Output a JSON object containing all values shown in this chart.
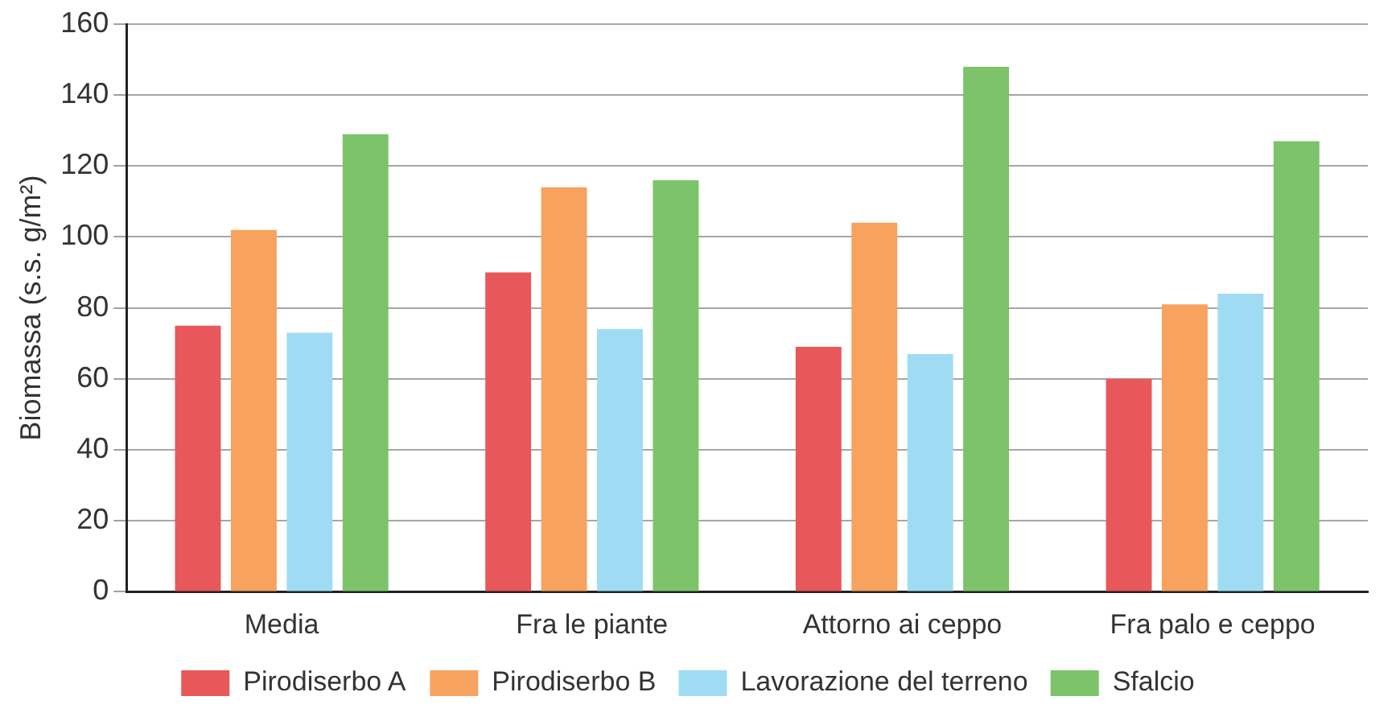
{
  "chart_data": {
    "type": "bar",
    "ylabel": "Biomassa (s.s. g/m²)",
    "categories": [
      "Media",
      "Fra le piante",
      "Attorno ai ceppo",
      "Fra palo e ceppo"
    ],
    "series": [
      {
        "name": "Pirodiserbo A",
        "color": "#e8585a",
        "values": [
          75,
          90,
          69,
          60
        ]
      },
      {
        "name": "Pirodiserbo B",
        "color": "#f7a25e",
        "values": [
          102,
          114,
          104,
          81
        ]
      },
      {
        "name": "Lavorazione del terreno",
        "color": "#9fdcf3",
        "values": [
          73,
          74,
          67,
          84
        ]
      },
      {
        "name": "Sfalcio",
        "color": "#7cc36a",
        "values": [
          129,
          116,
          148,
          127
        ]
      }
    ],
    "ylim": [
      0,
      160
    ],
    "yticks": [
      0,
      20,
      40,
      60,
      80,
      100,
      120,
      140,
      160
    ],
    "grid": "y",
    "legend": "bottom"
  }
}
